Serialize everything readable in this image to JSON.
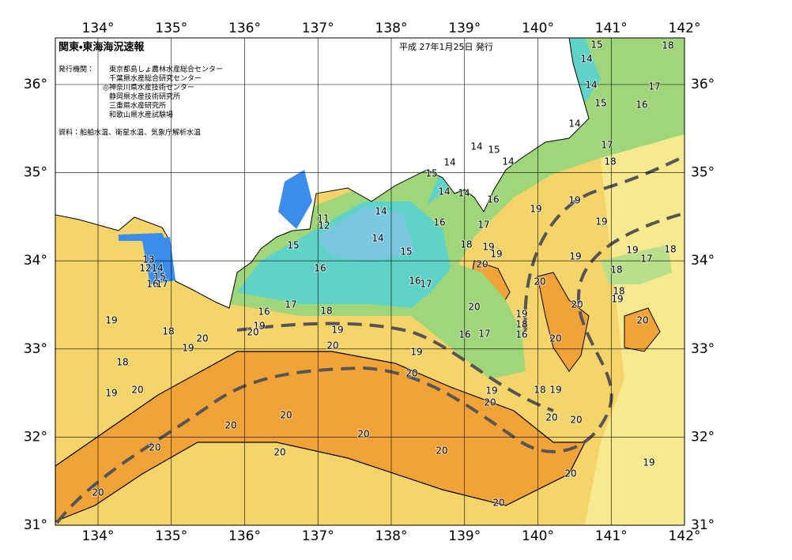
{
  "header": {
    "title": "関東・東海海況速報",
    "date": "平成 27年1月25日 発行",
    "issuer_label": "発行機関：",
    "issuers": [
      "東京都島しょ農林水産総合センター",
      "千葉県水産総合研究センター",
      "◎神奈川県水産技術センター",
      "静岡県水産技術研究所",
      "三重県水産研究所",
      "和歌山県水産試験場"
    ],
    "source": "資料：船舶水温、衛星水温、気象庁解析水温"
  },
  "map": {
    "lon_labels": [
      "134°",
      "135°",
      "136°",
      "137°",
      "138°",
      "139°",
      "140°",
      "141°",
      "142°"
    ],
    "lat_labels": [
      "36°",
      "35°",
      "34°",
      "33°",
      "32°",
      "31°"
    ],
    "contour_labels": [
      "15",
      "18",
      "14",
      "14",
      "17",
      "16",
      "15",
      "14",
      "17",
      "18",
      "14",
      "15",
      "14",
      "14",
      "15",
      "14",
      "14",
      "16",
      "19",
      "19",
      "19",
      "11",
      "12",
      "14",
      "16",
      "17",
      "14",
      "15",
      "15",
      "18",
      "19",
      "19",
      "20",
      "19",
      "19",
      "17",
      "18",
      "18",
      "18",
      "19",
      "20",
      "16",
      "16",
      "17",
      "20",
      "20",
      "13",
      "12",
      "14",
      "15",
      "16",
      "17",
      "16",
      "17",
      "18",
      "19",
      "18",
      "16",
      "16",
      "17",
      "20",
      "19",
      "18",
      "19",
      "20",
      "19",
      "19",
      "20",
      "20",
      "20",
      "19",
      "18",
      "20",
      "19",
      "20",
      "19",
      "18",
      "19",
      "20",
      "20",
      "20",
      "20",
      "20",
      "20",
      "20",
      "20",
      "20",
      "19",
      "20",
      "20",
      "20"
    ]
  }
}
